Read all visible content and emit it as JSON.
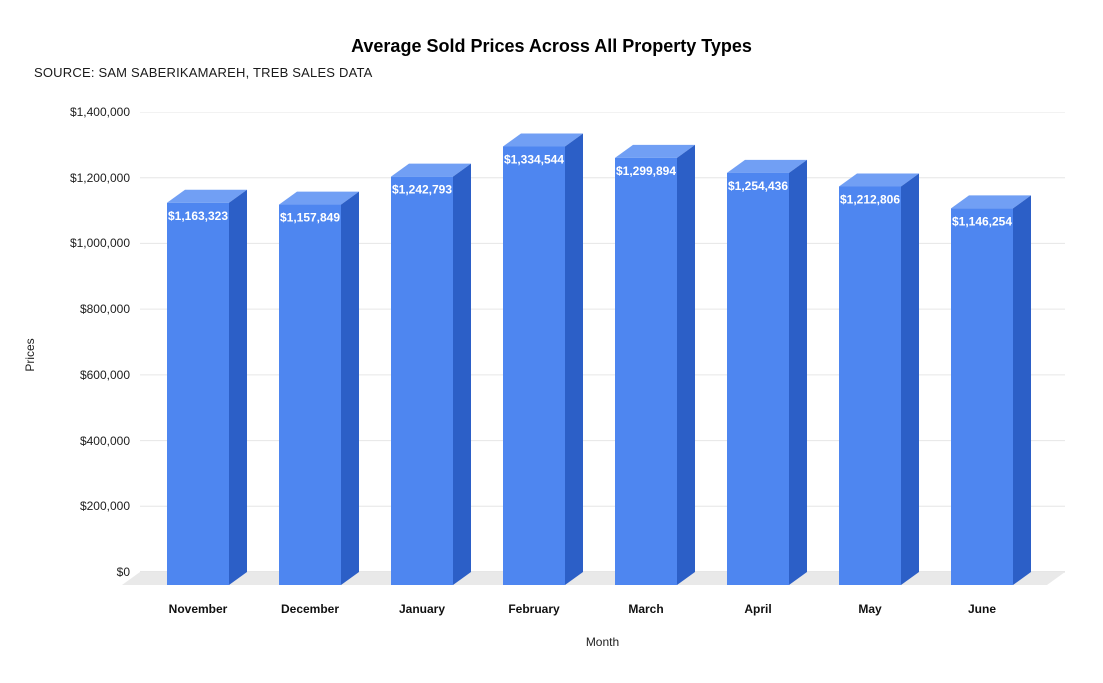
{
  "title": "Average Sold Prices Across All Property Types",
  "source": "SOURCE: SAM SABERIKAMAREH, TREB SALES DATA",
  "chart_data": {
    "type": "bar",
    "style": "3d-column",
    "categories": [
      "November",
      "December",
      "January",
      "February",
      "March",
      "April",
      "May",
      "June"
    ],
    "values": [
      1163323,
      1157849,
      1242793,
      1334544,
      1299894,
      1254436,
      1212806,
      1146254
    ],
    "value_labels": [
      "$1,163,323",
      "$1,157,849",
      "$1,242,793",
      "$1,334,544",
      "$1,299,894",
      "$1,254,436",
      "$1,212,806",
      "$1,146,254"
    ],
    "title": "Average Sold Prices Across All Property Types",
    "xlabel": "Month",
    "ylabel": "Prices",
    "ylim": [
      0,
      1400000
    ],
    "ytick_step": 200000,
    "ytick_labels": [
      "$0",
      "$200,000",
      "$400,000",
      "$600,000",
      "$800,000",
      "$1,000,000",
      "$1,200,000",
      "$1,400,000"
    ],
    "grid": true,
    "legend": "none",
    "colors": {
      "bar_front": "#4e86f0",
      "bar_top": "#719ff4",
      "bar_side": "#2c5fc7",
      "floor": "#e9e9e9",
      "gridline": "#e6e6e6",
      "baseline": "#cccccc",
      "value_label_text": "#ffffff"
    }
  }
}
